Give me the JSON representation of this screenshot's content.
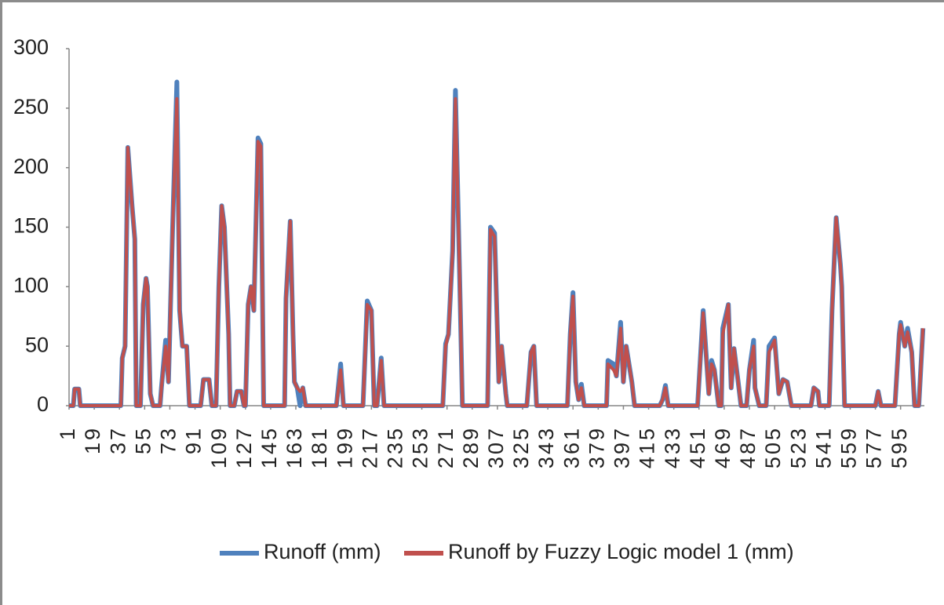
{
  "chart_data": {
    "type": "line",
    "x": [
      1,
      4,
      5,
      8,
      9,
      38,
      39,
      41,
      43,
      46,
      48,
      49,
      52,
      54,
      56,
      57,
      59,
      61,
      66,
      67,
      70,
      72,
      75,
      78,
      80,
      82,
      85,
      87,
      95,
      97,
      101,
      103,
      106,
      108,
      110,
      112,
      115,
      116,
      119,
      121,
      124,
      126,
      127,
      129,
      131,
      133,
      136,
      138,
      140,
      155,
      156,
      159,
      161,
      162,
      164,
      166,
      168,
      170,
      192,
      195,
      197,
      211,
      214,
      217,
      219,
      221,
      224,
      226,
      268,
      270,
      272,
      275,
      277,
      280,
      282,
      300,
      302,
      305,
      308,
      310,
      313,
      314,
      328,
      331,
      333,
      335,
      357,
      359,
      361,
      363,
      365,
      367,
      369,
      385,
      386,
      390,
      392,
      395,
      397,
      399,
      403,
      405,
      423,
      425,
      427,
      429,
      450,
      454,
      458,
      460,
      462,
      465,
      467,
      468,
      472,
      474,
      476,
      479,
      481,
      485,
      487,
      490,
      491,
      494,
      499,
      501,
      505,
      508,
      511,
      514,
      517,
      531,
      533,
      536,
      537,
      544,
      546,
      549,
      552,
      553,
      555,
      577,
      579,
      581,
      591,
      594,
      595,
      598,
      600,
      603,
      605,
      608,
      611
    ],
    "series": [
      {
        "name": "Runoff (mm)",
        "color": "#4f81bd",
        "values": [
          0,
          0,
          14,
          14,
          0,
          0,
          40,
          50,
          217,
          168,
          140,
          0,
          0,
          85,
          107,
          100,
          10,
          0,
          0,
          15,
          55,
          20,
          150,
          272,
          80,
          50,
          50,
          0,
          0,
          22,
          22,
          0,
          0,
          100,
          168,
          150,
          60,
          0,
          0,
          12,
          12,
          0,
          0,
          85,
          100,
          80,
          225,
          220,
          0,
          0,
          90,
          155,
          60,
          20,
          15,
          0,
          15,
          0,
          0,
          35,
          0,
          0,
          88,
          80,
          0,
          0,
          40,
          0,
          0,
          52,
          60,
          130,
          265,
          110,
          0,
          0,
          150,
          145,
          20,
          50,
          10,
          0,
          0,
          45,
          50,
          0,
          0,
          60,
          95,
          20,
          5,
          18,
          0,
          0,
          38,
          35,
          25,
          70,
          20,
          50,
          20,
          0,
          0,
          5,
          17,
          0,
          0,
          80,
          10,
          38,
          30,
          0,
          0,
          65,
          85,
          15,
          48,
          20,
          0,
          0,
          30,
          55,
          15,
          0,
          0,
          50,
          57,
          10,
          22,
          20,
          0,
          0,
          15,
          12,
          0,
          0,
          80,
          158,
          118,
          100,
          0,
          0,
          12,
          0,
          0,
          60,
          70,
          50,
          65,
          45,
          0,
          0,
          65
        ]
      },
      {
        "name": "Runoff by Fuzzy Logic model 1 (mm)",
        "color": "#c0504d",
        "values": [
          0,
          0,
          14,
          14,
          0,
          0,
          40,
          50,
          217,
          168,
          140,
          0,
          0,
          85,
          107,
          100,
          10,
          0,
          0,
          15,
          50,
          20,
          150,
          258,
          80,
          50,
          50,
          0,
          0,
          22,
          22,
          0,
          0,
          100,
          168,
          150,
          60,
          0,
          0,
          12,
          12,
          0,
          0,
          85,
          100,
          80,
          222,
          218,
          0,
          0,
          90,
          155,
          60,
          20,
          15,
          12,
          15,
          0,
          0,
          30,
          0,
          0,
          85,
          80,
          0,
          0,
          38,
          0,
          0,
          50,
          60,
          130,
          258,
          110,
          0,
          0,
          148,
          142,
          20,
          50,
          10,
          0,
          0,
          45,
          50,
          0,
          0,
          60,
          92,
          20,
          5,
          15,
          0,
          0,
          35,
          30,
          25,
          65,
          20,
          50,
          20,
          0,
          0,
          5,
          15,
          0,
          0,
          78,
          10,
          35,
          30,
          0,
          0,
          60,
          85,
          15,
          48,
          20,
          0,
          0,
          30,
          50,
          15,
          0,
          0,
          45,
          55,
          10,
          22,
          20,
          0,
          0,
          15,
          12,
          0,
          0,
          80,
          158,
          118,
          100,
          0,
          0,
          12,
          0,
          0,
          60,
          68,
          50,
          62,
          45,
          0,
          0,
          65
        ]
      }
    ],
    "xlim": [
      1,
      612
    ],
    "xticks": [
      1,
      19,
      37,
      55,
      73,
      91,
      109,
      127,
      145,
      163,
      181,
      199,
      217,
      235,
      253,
      271,
      289,
      307,
      325,
      343,
      361,
      379,
      397,
      415,
      433,
      451,
      469,
      487,
      505,
      523,
      541,
      559,
      577,
      595
    ],
    "ylim": [
      0,
      300
    ],
    "yticks": [
      0,
      50,
      100,
      150,
      200,
      250,
      300
    ],
    "grid": false
  }
}
